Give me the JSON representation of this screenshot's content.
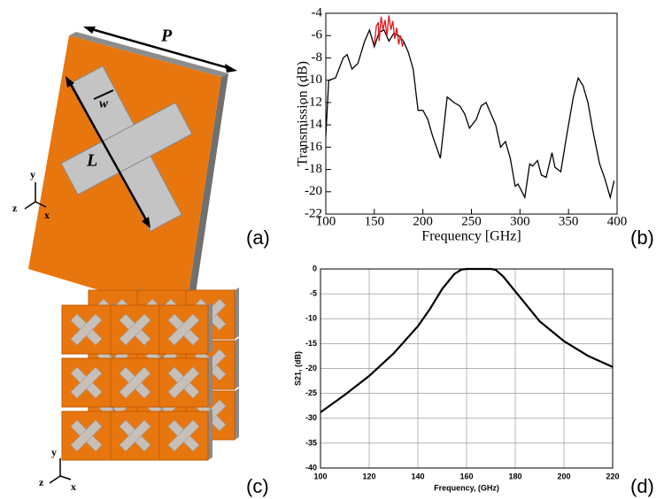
{
  "figure": {
    "panel_labels": [
      "(a)",
      "(b)",
      "(c)",
      "(d)"
    ],
    "dimension_labels": {
      "P": "P",
      "L": "L",
      "w": "w"
    },
    "axes_labels_a": [
      "y",
      "z",
      "x"
    ],
    "axes_labels_c": [
      "y",
      "z",
      "x"
    ]
  },
  "chart_data": [
    {
      "type": "line",
      "xlabel": "Frequency [GHz]",
      "ylabel": "Transmission (dB)",
      "xlim": [
        100,
        400
      ],
      "ylim": [
        -22,
        -4
      ],
      "xticks": [
        100,
        150,
        200,
        250,
        300,
        350,
        400
      ],
      "yticks": [
        -4,
        -6,
        -8,
        -10,
        -12,
        -14,
        -16,
        -18,
        -20,
        -22
      ],
      "grid": false,
      "series": [
        {
          "color": "#000000",
          "x": [
            100,
            103,
            110,
            118,
            122,
            127,
            133,
            140,
            145,
            150,
            155,
            160,
            165,
            170,
            175,
            180,
            185,
            190,
            195,
            200,
            205,
            210,
            218,
            225,
            232,
            238,
            243,
            248,
            255,
            260,
            265,
            270,
            275,
            280,
            285,
            290,
            295,
            298,
            305,
            310,
            313,
            318,
            322,
            327,
            333,
            336,
            342,
            348,
            355,
            360,
            365,
            370,
            375,
            382,
            387,
            393,
            397
          ],
          "values": [
            -15,
            -10,
            -9.8,
            -8,
            -7.7,
            -9,
            -8.5,
            -6.5,
            -5.5,
            -7,
            -5.7,
            -5.5,
            -6.5,
            -5.8,
            -6,
            -6.5,
            -7.5,
            -9,
            -12.7,
            -12.7,
            -13.5,
            -15,
            -17,
            -11.5,
            -12,
            -12.3,
            -13,
            -14.3,
            -13.5,
            -12.3,
            -12,
            -13,
            -14,
            -16,
            -15.5,
            -17,
            -19.5,
            -19.3,
            -20.5,
            -17.5,
            -17.7,
            -17.2,
            -18.5,
            -18.7,
            -16.5,
            -17.8,
            -18.2,
            -15,
            -11.5,
            -9.8,
            -10.5,
            -12,
            -14.5,
            -17.5,
            -18.7,
            -20.5,
            -19
          ]
        },
        {
          "color": "#e8141c",
          "x": [
            150,
            152,
            154,
            155,
            157,
            159,
            161,
            163,
            165,
            167,
            169,
            171,
            173,
            175,
            177,
            179,
            180
          ],
          "values": [
            -6.8,
            -5.2,
            -4.8,
            -6.5,
            -4.3,
            -5.5,
            -4.6,
            -6,
            -4.2,
            -5.5,
            -4.7,
            -6.3,
            -5.3,
            -6.8,
            -6,
            -7,
            -6.5
          ]
        }
      ]
    },
    {
      "type": "line",
      "xlabel": "Frequency, (GHz)",
      "ylabel": "S21, (dB)",
      "xlim": [
        100,
        220
      ],
      "ylim": [
        -40,
        0
      ],
      "xticks": [
        100,
        120,
        140,
        160,
        180,
        200,
        220
      ],
      "yticks": [
        0,
        -5,
        -10,
        -15,
        -20,
        -25,
        -30,
        -35,
        -40
      ],
      "grid": true,
      "series": [
        {
          "color": "#000000",
          "x": [
            100,
            110,
            120,
            130,
            140,
            145,
            150,
            155,
            158,
            160,
            170,
            172,
            175,
            180,
            185,
            190,
            200,
            210,
            220
          ],
          "values": [
            -28.8,
            -25.3,
            -21.5,
            -17,
            -11.5,
            -8,
            -4,
            -1,
            -0.1,
            0,
            0,
            -0.2,
            -1.5,
            -4.5,
            -7.5,
            -10.5,
            -14.5,
            -17.5,
            -19.7
          ]
        }
      ]
    }
  ]
}
